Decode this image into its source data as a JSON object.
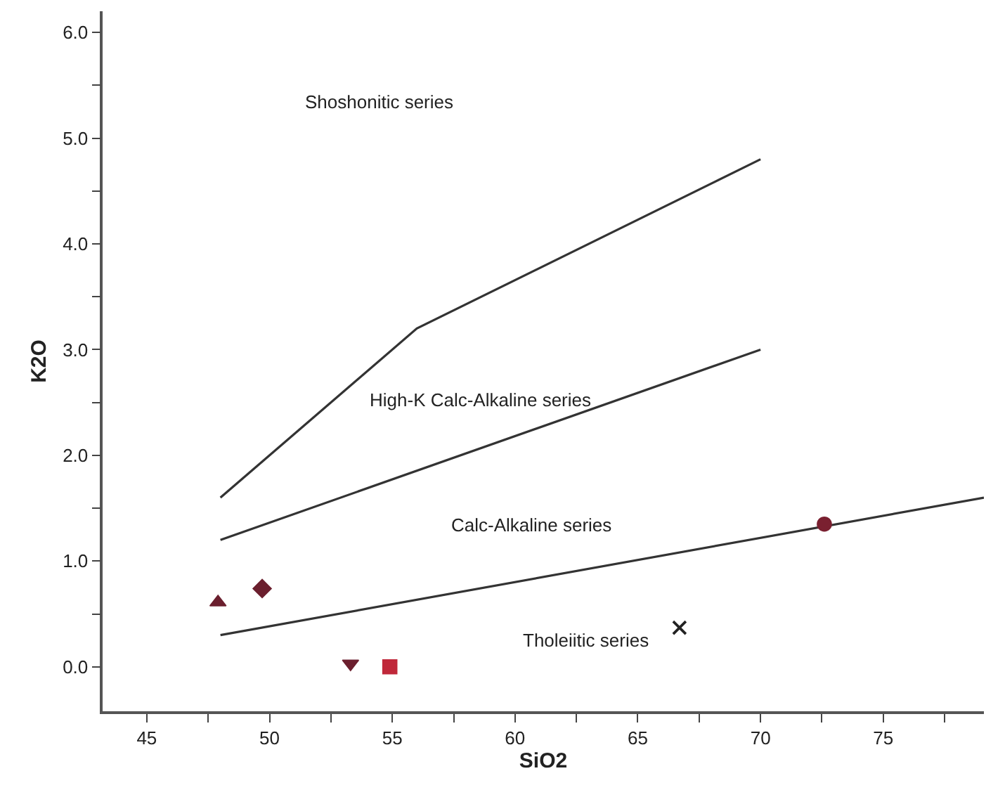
{
  "chart_data": {
    "type": "scatter",
    "xlabel": "SiO2",
    "ylabel": "K2O",
    "xlim": [
      43.2,
      79.1
    ],
    "ylim": [
      -0.42,
      6.2
    ],
    "xticks": [
      45,
      {
        "value": 47.5,
        "label": null
      },
      50,
      {
        "value": 52.5,
        "label": null
      },
      55,
      {
        "value": 57.5,
        "label": null
      },
      60,
      {
        "value": 62.5,
        "label": null
      },
      65,
      {
        "value": 67.5,
        "label": null
      },
      70,
      {
        "value": 72.5,
        "label": null
      },
      75,
      {
        "value": 77.5,
        "label": null
      }
    ],
    "yticks": [
      {
        "value": 0,
        "label": "0.0"
      },
      {
        "value": 0.5,
        "label": null
      },
      {
        "value": 1,
        "label": "1.0"
      },
      {
        "value": 1.5,
        "label": null
      },
      {
        "value": 2,
        "label": "2.0"
      },
      {
        "value": 2.5,
        "label": null
      },
      {
        "value": 3,
        "label": "3.0"
      },
      {
        "value": 3.5,
        "label": null
      },
      {
        "value": 4,
        "label": "4.0"
      },
      {
        "value": 4.5,
        "label": null
      },
      {
        "value": 5,
        "label": "5.0"
      },
      {
        "value": 5.5,
        "label": null
      },
      {
        "value": 6,
        "label": "6.0"
      }
    ],
    "annotations": [
      "Shoshonitic series",
      "High-K Calc-Alkaline series",
      "Calc-Alkaline series",
      "Tholeiitic series"
    ],
    "series": [
      {
        "type": "line",
        "color": "#333333",
        "marker": "none",
        "x": [
          48,
          56,
          70
        ],
        "values": [
          1.6,
          3.2,
          4.8
        ]
      },
      {
        "type": "line",
        "color": "#333333",
        "marker": "none",
        "x": [
          48,
          70
        ],
        "values": [
          1.2,
          3.0
        ]
      },
      {
        "type": "line",
        "color": "#333333",
        "marker": "none",
        "x": [
          48,
          79.1
        ],
        "values": [
          0.3,
          1.6
        ]
      },
      {
        "color": "#6b1f2e",
        "marker": "triangle",
        "x": [
          47.9
        ],
        "values": [
          0.61
        ]
      },
      {
        "color": "#6b1f2e",
        "marker": "diamond",
        "x": [
          49.7
        ],
        "values": [
          0.74
        ]
      },
      {
        "color": "#6b1f2e",
        "marker": "triangle-down",
        "x": [
          53.3
        ],
        "values": [
          0.03
        ]
      },
      {
        "color": "#c0283a",
        "marker": "square",
        "x": [
          54.9
        ],
        "values": [
          0.0
        ]
      },
      {
        "color": "#222222",
        "marker": "cross",
        "x": [
          66.7
        ],
        "values": [
          0.37
        ]
      },
      {
        "color": "#7a2030",
        "marker": "circle",
        "x": [
          72.6
        ],
        "values": [
          1.35
        ]
      }
    ]
  }
}
